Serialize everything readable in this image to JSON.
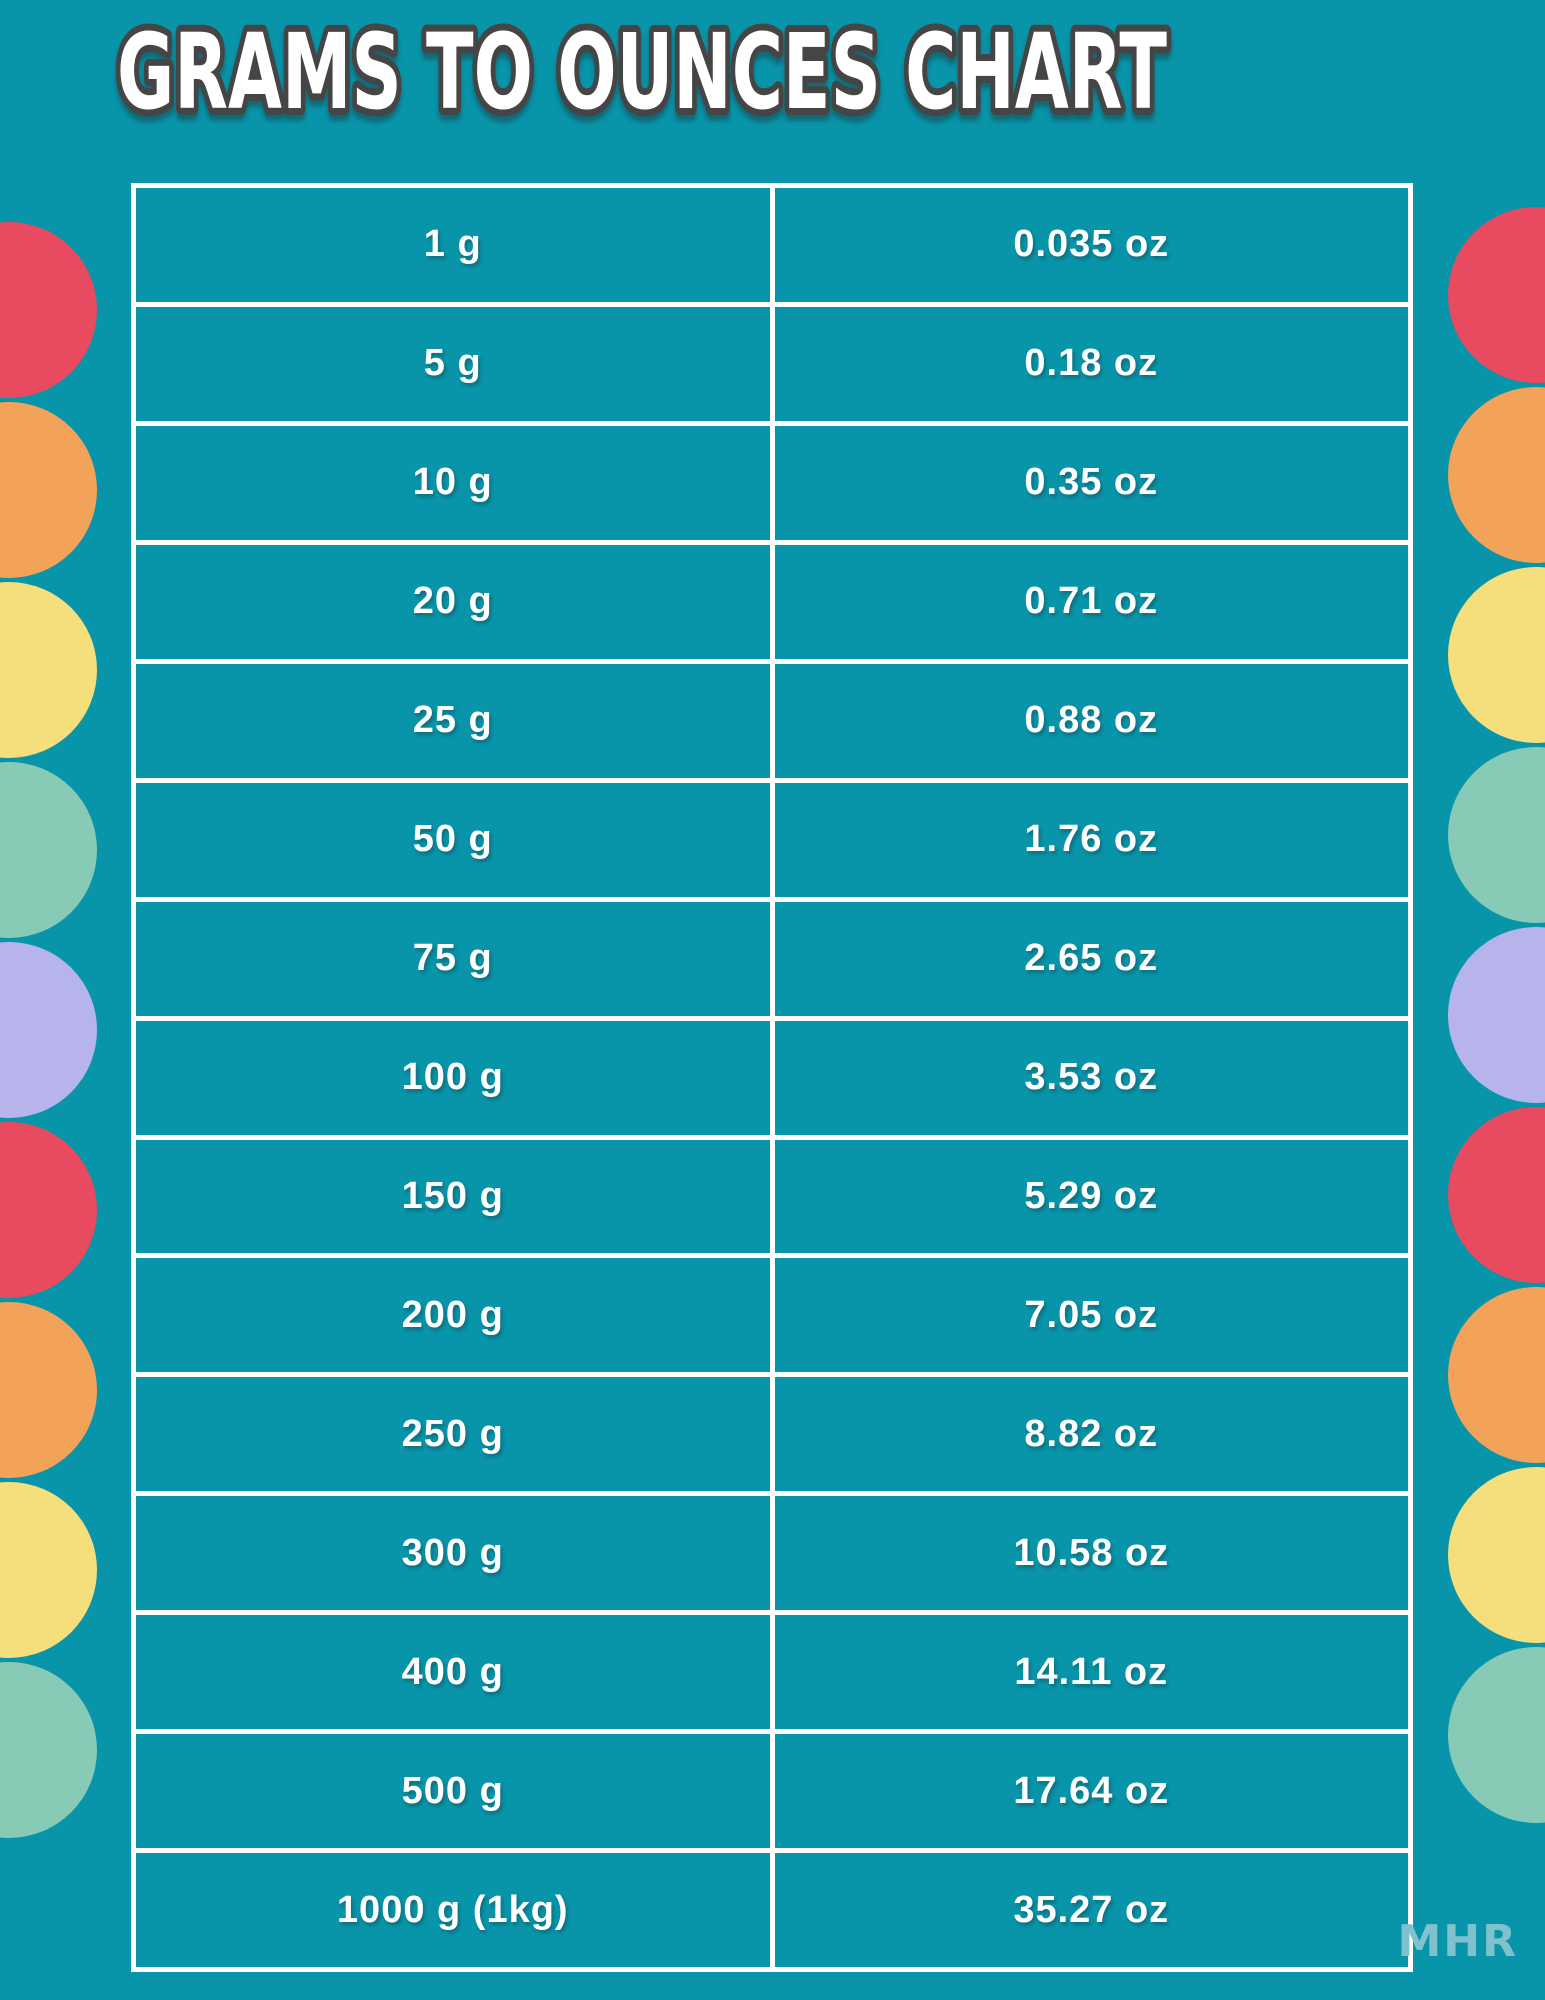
{
  "page": {
    "background_color": "#0894A9"
  },
  "title": {
    "text": "GRAMS TO OUNCES CHART",
    "fill_color": "#FFFFFF",
    "outline_color": "#454545"
  },
  "conversion_table": {
    "border_color": "#FFFFFF",
    "text_color": "#FFFFFF",
    "rows": [
      {
        "grams": "1 g",
        "ounces": "0.035 oz"
      },
      {
        "grams": "5 g",
        "ounces": "0.18 oz"
      },
      {
        "grams": "10 g",
        "ounces": "0.35 oz"
      },
      {
        "grams": "20 g",
        "ounces": "0.71 oz"
      },
      {
        "grams": "25 g",
        "ounces": "0.88 oz"
      },
      {
        "grams": "50 g",
        "ounces": "1.76 oz"
      },
      {
        "grams": "75 g",
        "ounces": "2.65 oz"
      },
      {
        "grams": "100 g",
        "ounces": "3.53 oz"
      },
      {
        "grams": "150 g",
        "ounces": "5.29 oz"
      },
      {
        "grams": "200 g",
        "ounces": "7.05 oz"
      },
      {
        "grams": "250 g",
        "ounces": "8.82 oz"
      },
      {
        "grams": "300 g",
        "ounces": "10.58 oz"
      },
      {
        "grams": "400 g",
        "ounces": "14.11 oz"
      },
      {
        "grams": "500 g",
        "ounces": "17.64 oz"
      },
      {
        "grams": "1000 g (1kg)",
        "ounces": "35.27 oz"
      }
    ]
  },
  "logo": {
    "text": "MHR",
    "color": "#7FC2CE"
  },
  "decor": {
    "palette": {
      "red": "#E84A5F",
      "orange": "#F3A259",
      "yellow": "#F5DF7D",
      "mint": "#87CBB7",
      "lavender": "#B7B4EC"
    },
    "left_circles": [
      "red",
      "orange",
      "yellow",
      "mint",
      "lavender",
      "red",
      "orange",
      "yellow",
      "mint"
    ],
    "right_circles": [
      "red",
      "orange",
      "yellow",
      "mint",
      "lavender",
      "red",
      "orange",
      "yellow",
      "mint"
    ]
  }
}
